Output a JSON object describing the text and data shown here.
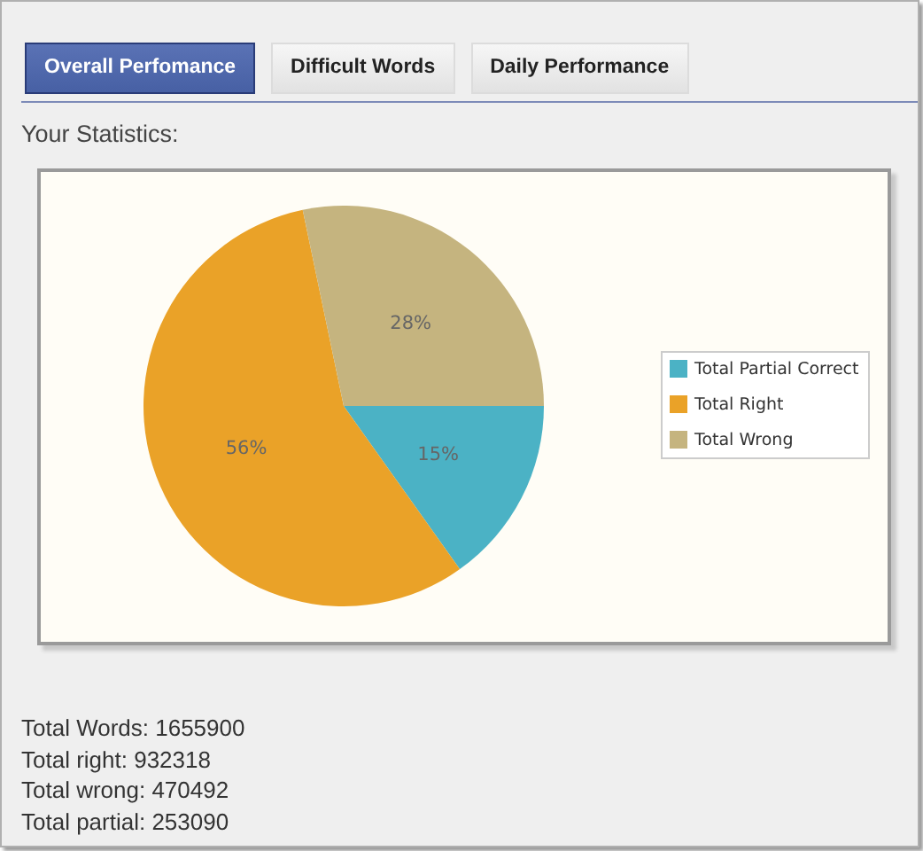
{
  "chart_data": {
    "type": "pie",
    "title": "Your Statistics:",
    "categories": [
      "Total Partial Correct",
      "Total Right",
      "Total Wrong"
    ],
    "values": [
      15,
      56,
      28
    ],
    "colors": [
      "#4bb2c5",
      "#eaa228",
      "#c5b47f"
    ],
    "value_labels": [
      "15%",
      "56%",
      "28%"
    ],
    "legend": "right",
    "annotations": [
      "Overall Perfomance",
      "Difficult Words",
      "Daily Performance",
      "Total Words: 1655900",
      "Total right: 932318",
      "Total wrong: 470492",
      "Total partial: 253090"
    ]
  }
}
